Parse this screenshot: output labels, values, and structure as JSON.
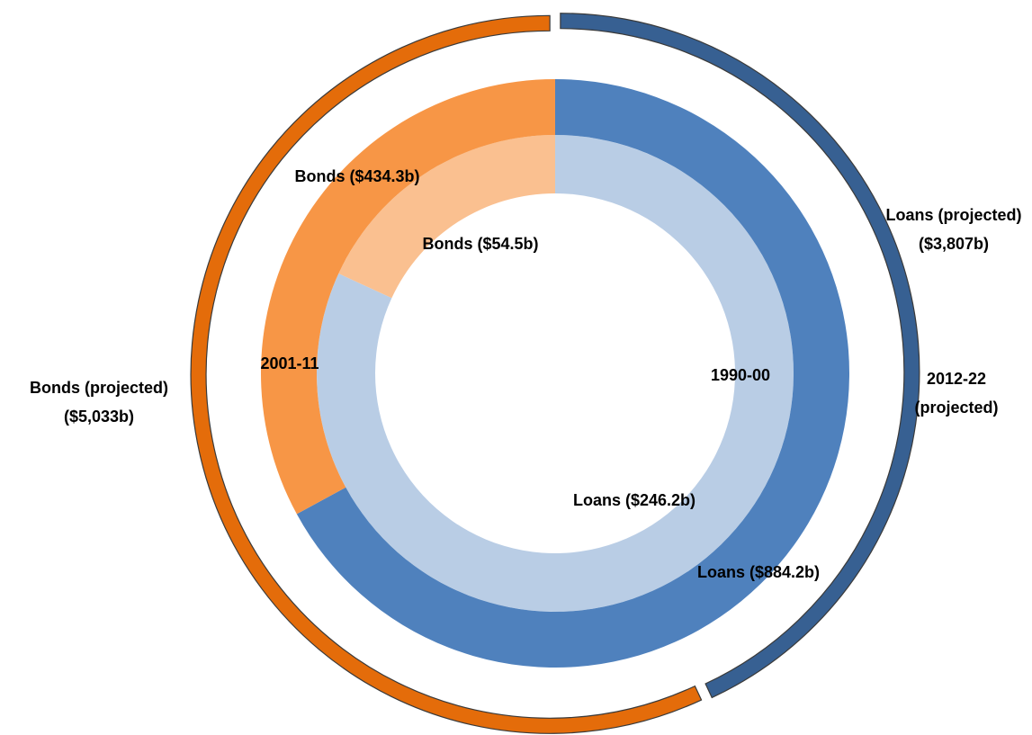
{
  "chart_data": {
    "type": "donut",
    "rings": [
      {
        "name": "1990-00",
        "categories": [
          "Loans",
          "Bonds"
        ],
        "values": [
          246.2,
          54.5
        ],
        "value_labels": [
          "Loans ($246.2b)",
          "Bonds ($54.5b)"
        ],
        "colors": [
          "#b9cde5",
          "#fac090"
        ]
      },
      {
        "name": "2001-11",
        "categories": [
          "Loans",
          "Bonds"
        ],
        "values": [
          884.2,
          434.3
        ],
        "value_labels": [
          "Loans ($884.2b)",
          "Bonds ($434.3b)"
        ],
        "colors": [
          "#4f81bd",
          "#f79646"
        ]
      },
      {
        "name": [
          "2012-22",
          "(projected)"
        ],
        "categories": [
          "Loans",
          "Bonds"
        ],
        "values": [
          3807,
          5033
        ],
        "value_labels": [
          [
            "Loans (projected)",
            "($3,807b)"
          ],
          [
            "Bonds (projected)",
            "($5,033b)"
          ]
        ],
        "colors": [
          "#376092",
          "#e46c0a"
        ]
      }
    ]
  }
}
